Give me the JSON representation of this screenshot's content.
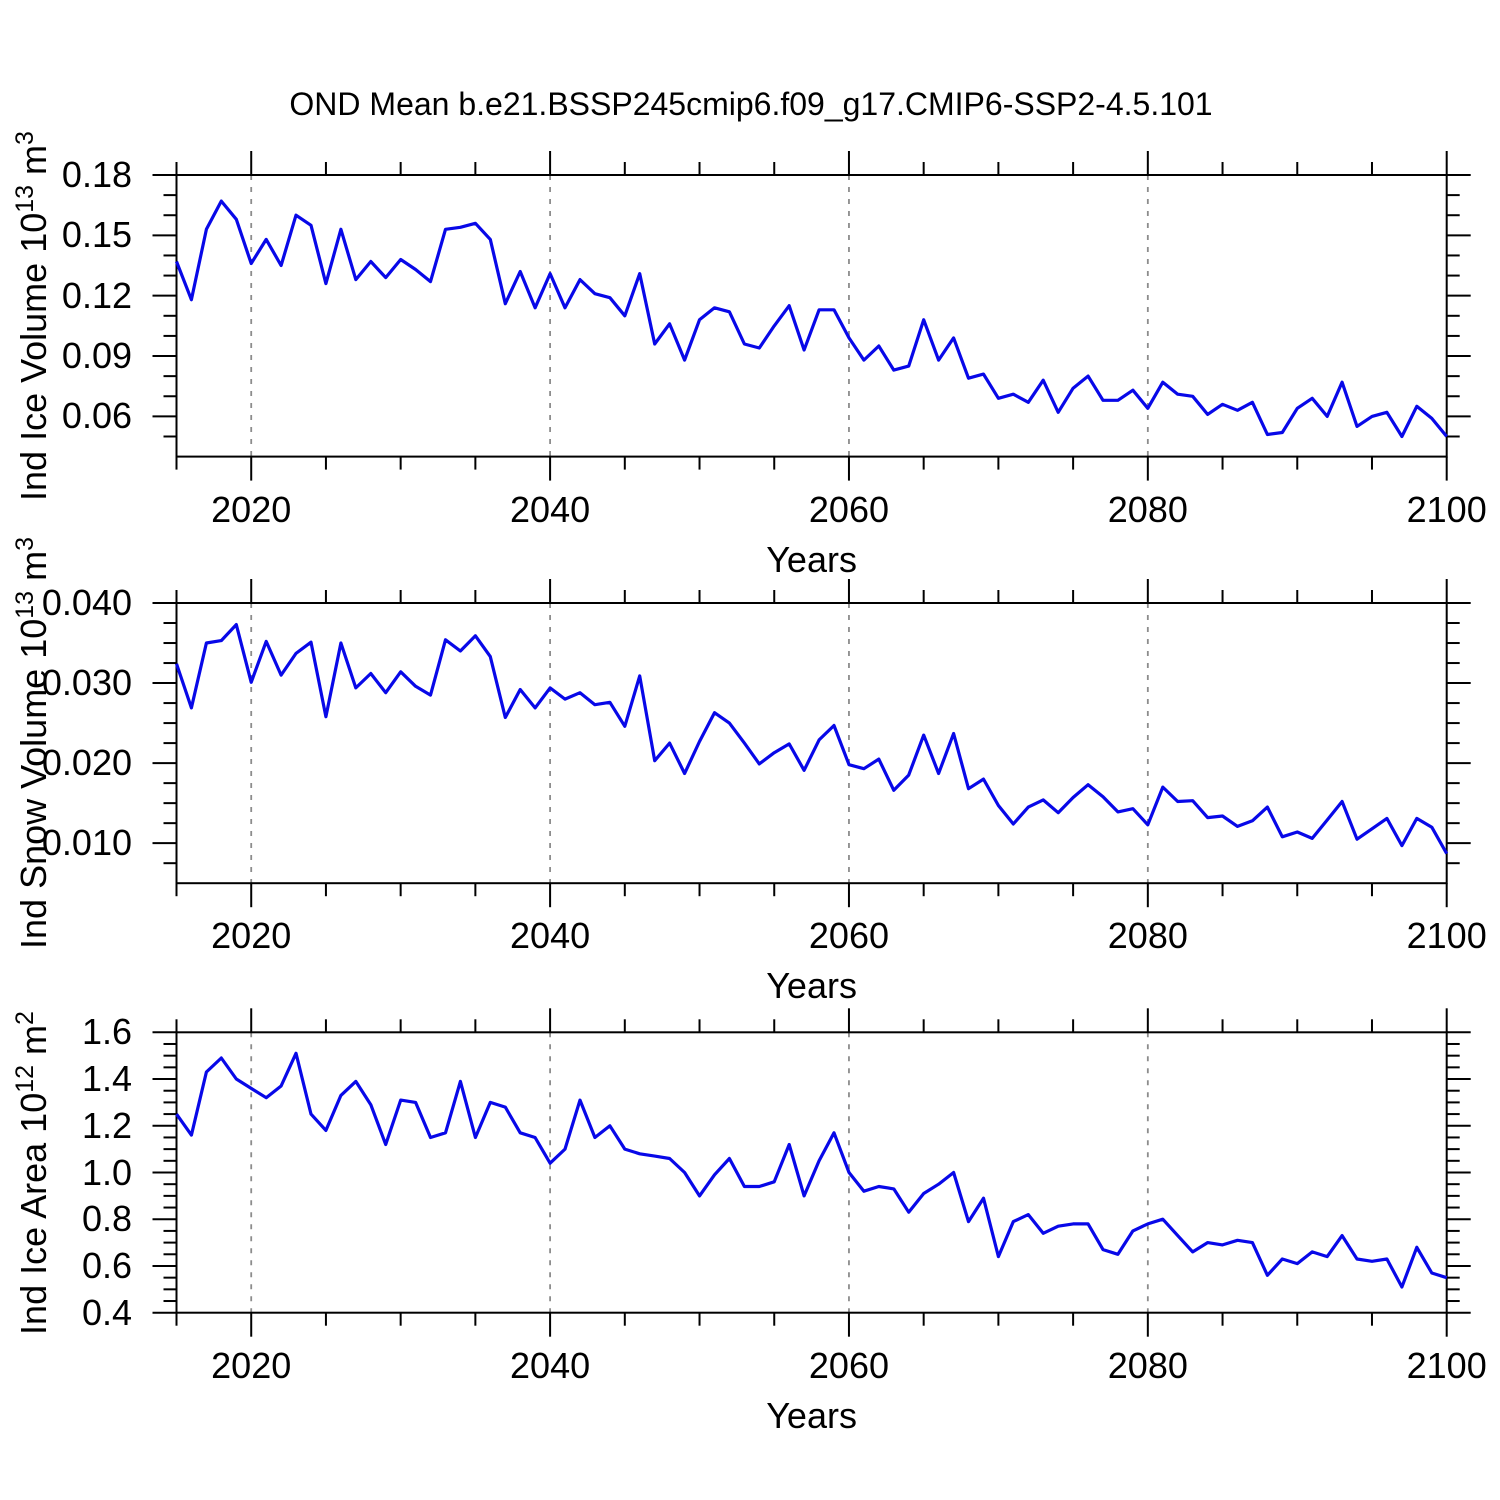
{
  "title": "OND Mean b.e21.BSSP245cmip6.f09_g17.CMIP6-SSP2-4.5.101",
  "colors": {
    "line": "#0808E8",
    "grid": "#8c8c8c",
    "axis": "#000000",
    "background": "#ffffff"
  },
  "x_axis": {
    "label": "Years",
    "range": [
      2015,
      2100
    ],
    "tick_values": [
      2020,
      2040,
      2060,
      2080,
      2100
    ],
    "tick_labels": [
      "2020",
      "2040",
      "2060",
      "2080",
      "2100"
    ],
    "minor_step": 5,
    "gridlines": [
      2020,
      2040,
      2060,
      2080
    ]
  },
  "chart_data": [
    {
      "type": "line",
      "name": "ice-volume",
      "ylabel_parts": {
        "pre": "Ind Ice Volume 10",
        "sup1": "13",
        "mid": " m",
        "sup2": "3"
      },
      "ylim": [
        0.04,
        0.18
      ],
      "ytick_values": [
        0.18,
        0.15,
        0.12,
        0.09,
        0.06
      ],
      "ytick_labels": [
        "0.18",
        "0.15",
        "0.12",
        "0.09",
        "0.06"
      ],
      "yminor_step": 0.01,
      "x_start": 2015,
      "x_step": 1,
      "values": [
        0.137,
        0.118,
        0.153,
        0.167,
        0.158,
        0.136,
        0.148,
        0.135,
        0.16,
        0.155,
        0.126,
        0.153,
        0.128,
        0.137,
        0.129,
        0.138,
        0.133,
        0.127,
        0.153,
        0.154,
        0.156,
        0.148,
        0.116,
        0.132,
        0.114,
        0.131,
        0.114,
        0.128,
        0.121,
        0.119,
        0.11,
        0.131,
        0.096,
        0.106,
        0.088,
        0.108,
        0.114,
        0.112,
        0.096,
        0.094,
        0.105,
        0.115,
        0.093,
        0.113,
        0.113,
        0.099,
        0.088,
        0.095,
        0.083,
        0.085,
        0.108,
        0.088,
        0.099,
        0.079,
        0.081,
        0.069,
        0.071,
        0.067,
        0.078,
        0.062,
        0.074,
        0.08,
        0.068,
        0.068,
        0.073,
        0.064,
        0.077,
        0.071,
        0.07,
        0.061,
        0.066,
        0.063,
        0.067,
        0.051,
        0.052,
        0.064,
        0.069,
        0.06,
        0.077,
        0.055,
        0.06,
        0.062,
        0.05,
        0.065,
        0.059,
        0.05
      ]
    },
    {
      "type": "line",
      "name": "snow-volume",
      "ylabel_parts": {
        "pre": "Ind Snow Volume 10",
        "sup1": "13",
        "mid": " m",
        "sup2": "3"
      },
      "ylim": [
        0.005,
        0.04
      ],
      "ytick_values": [
        0.04,
        0.03,
        0.02,
        0.01
      ],
      "ytick_labels": [
        "0.040",
        "0.030",
        "0.020",
        "0.010"
      ],
      "yminor_step": 0.0025,
      "x_start": 2015,
      "x_step": 1,
      "values": [
        0.0324,
        0.0269,
        0.035,
        0.0353,
        0.0373,
        0.0301,
        0.0352,
        0.031,
        0.0337,
        0.0351,
        0.0258,
        0.035,
        0.0294,
        0.0312,
        0.0288,
        0.0314,
        0.0296,
        0.0285,
        0.0354,
        0.034,
        0.0359,
        0.0333,
        0.0257,
        0.0292,
        0.0269,
        0.0294,
        0.028,
        0.0288,
        0.0273,
        0.0276,
        0.0246,
        0.0309,
        0.0203,
        0.0225,
        0.0187,
        0.0227,
        0.0263,
        0.025,
        0.0225,
        0.0199,
        0.0213,
        0.0224,
        0.0191,
        0.0229,
        0.0247,
        0.0198,
        0.0193,
        0.0205,
        0.0166,
        0.0185,
        0.0235,
        0.0187,
        0.0237,
        0.0168,
        0.018,
        0.0147,
        0.0124,
        0.0145,
        0.0154,
        0.0138,
        0.0157,
        0.0173,
        0.0158,
        0.0139,
        0.0143,
        0.0123,
        0.017,
        0.0152,
        0.0153,
        0.0132,
        0.0134,
        0.0121,
        0.0128,
        0.0145,
        0.0108,
        0.0114,
        0.0106,
        0.0129,
        0.0152,
        0.0105,
        0.0118,
        0.0131,
        0.0097,
        0.0131,
        0.012,
        0.0087
      ]
    },
    {
      "type": "line",
      "name": "ice-area",
      "ylabel_parts": {
        "pre": "Ind Ice Area 10",
        "sup1": "12",
        "mid": " m",
        "sup2": "2"
      },
      "ylim": [
        0.4,
        1.6
      ],
      "ytick_values": [
        1.6,
        1.4,
        1.2,
        1.0,
        0.8,
        0.6,
        0.4
      ],
      "ytick_labels": [
        "1.6",
        "1.4",
        "1.2",
        "1.0",
        "0.8",
        "0.6",
        "0.4"
      ],
      "yminor_step": 0.05,
      "x_start": 2015,
      "x_step": 1,
      "values": [
        1.25,
        1.16,
        1.43,
        1.49,
        1.4,
        1.36,
        1.32,
        1.37,
        1.51,
        1.25,
        1.18,
        1.33,
        1.39,
        1.29,
        1.12,
        1.31,
        1.3,
        1.15,
        1.17,
        1.39,
        1.15,
        1.3,
        1.28,
        1.17,
        1.15,
        1.04,
        1.1,
        1.31,
        1.15,
        1.2,
        1.1,
        1.08,
        1.07,
        1.06,
        1.0,
        0.9,
        0.99,
        1.06,
        0.94,
        0.94,
        0.96,
        1.12,
        0.9,
        1.05,
        1.17,
        1.0,
        0.92,
        0.94,
        0.93,
        0.83,
        0.91,
        0.95,
        1.0,
        0.79,
        0.89,
        0.64,
        0.79,
        0.82,
        0.74,
        0.77,
        0.78,
        0.78,
        0.67,
        0.65,
        0.75,
        0.78,
        0.8,
        0.73,
        0.66,
        0.7,
        0.69,
        0.71,
        0.7,
        0.56,
        0.63,
        0.61,
        0.66,
        0.64,
        0.73,
        0.63,
        0.62,
        0.63,
        0.51,
        0.68,
        0.57,
        0.55
      ]
    }
  ]
}
